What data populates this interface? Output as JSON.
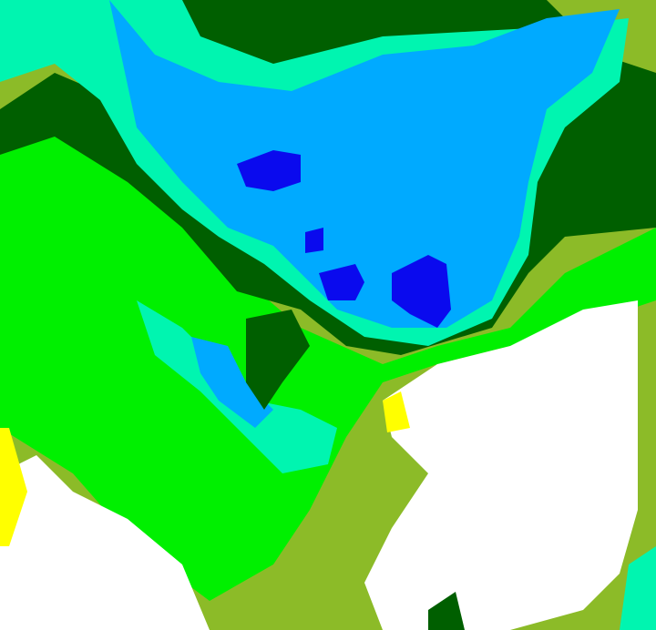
{
  "map": {
    "type": "classified-raster",
    "palette": {
      "deep_blue": "#0a0aee",
      "light_blue": "#00aaff",
      "aquamarine": "#00f5b0",
      "dark_green": "#005f00",
      "bright_green": "#00f000",
      "olive": "#8cbb28",
      "white": "#ffffff",
      "yellow": "#ffff00"
    }
  }
}
